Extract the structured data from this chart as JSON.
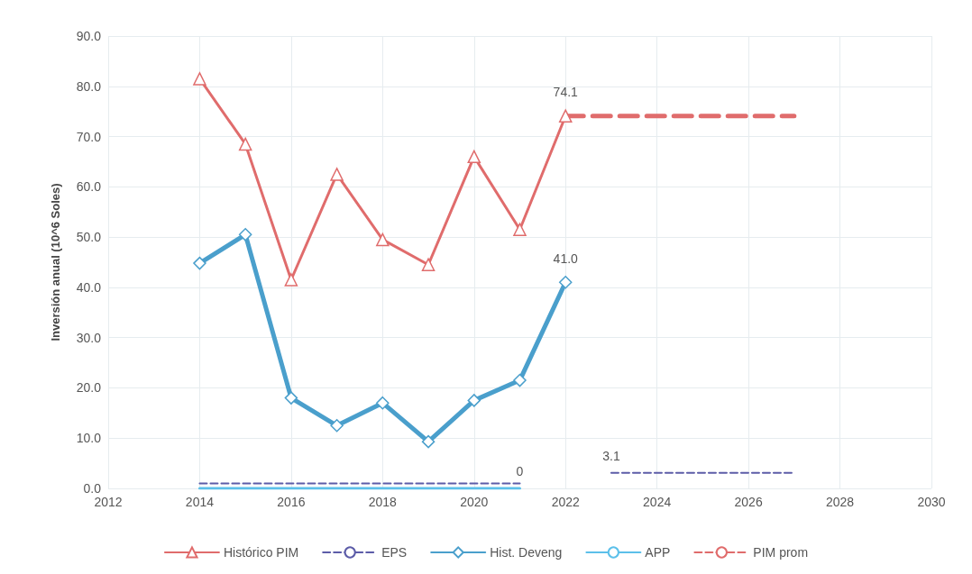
{
  "chart_data": {
    "type": "line",
    "ylabel": "Inversión anual (10^6 Soles)",
    "xlim": [
      2012,
      2030
    ],
    "xticks": [
      2012,
      2014,
      2016,
      2018,
      2020,
      2022,
      2024,
      2026,
      2028,
      2030
    ],
    "ylim": [
      0,
      90
    ],
    "yticks": [
      {
        "value": 0,
        "label": "0.0"
      },
      {
        "value": 10,
        "label": "10.0"
      },
      {
        "value": 20,
        "label": "20.0"
      },
      {
        "value": 30,
        "label": "30.0"
      },
      {
        "value": 40,
        "label": "40.0"
      },
      {
        "value": 50,
        "label": "50.0"
      },
      {
        "value": 60,
        "label": "60.0"
      },
      {
        "value": 70,
        "label": "70.0"
      },
      {
        "value": 80,
        "label": "80.0"
      },
      {
        "value": 90,
        "label": "90.0"
      }
    ],
    "grid": true,
    "legend": "bottom",
    "series": [
      {
        "name": "Histórico PIM",
        "color": "#e06c6c",
        "marker": "triangle",
        "line_style": "solid",
        "x": [
          2014,
          2015,
          2016,
          2017,
          2018,
          2019,
          2020,
          2021,
          2022
        ],
        "values": [
          81.5,
          68.5,
          41.5,
          62.5,
          49.5,
          44.5,
          66,
          51.5,
          74.1
        ],
        "value_labels": [
          null,
          null,
          null,
          null,
          null,
          null,
          null,
          null,
          "74.1"
        ]
      },
      {
        "name": "EPS",
        "color": "#5c5ca8",
        "marker": "none",
        "line_style": "dashed",
        "x": [
          2014,
          2021,
          2022,
          2023,
          2027
        ],
        "values": [
          1.0,
          1.0,
          null,
          3.1,
          3.1
        ],
        "value_labels": [
          null,
          null,
          null,
          "3.1",
          null
        ]
      },
      {
        "name": "Hist. Deveng",
        "color": "#4a9fcc",
        "marker": "diamond",
        "line_style": "solid",
        "x": [
          2014,
          2015,
          2016,
          2017,
          2018,
          2019,
          2020,
          2021,
          2022
        ],
        "values": [
          44.8,
          50.5,
          18,
          12.5,
          17,
          9.3,
          17.5,
          21.5,
          41.0
        ],
        "value_labels": [
          null,
          null,
          null,
          null,
          null,
          null,
          null,
          null,
          "41.0"
        ]
      },
      {
        "name": "APP",
        "color": "#5cc0ea",
        "marker": "none",
        "line_style": "solid",
        "x": [
          2014,
          2021
        ],
        "values": [
          0,
          0
        ],
        "value_labels": [
          null,
          "0"
        ]
      },
      {
        "name": "PIM prom",
        "color": "#e06c6c",
        "marker": "none",
        "line_style": "dashed",
        "x": [
          2022,
          2027
        ],
        "values": [
          74.1,
          74.1
        ]
      }
    ]
  }
}
